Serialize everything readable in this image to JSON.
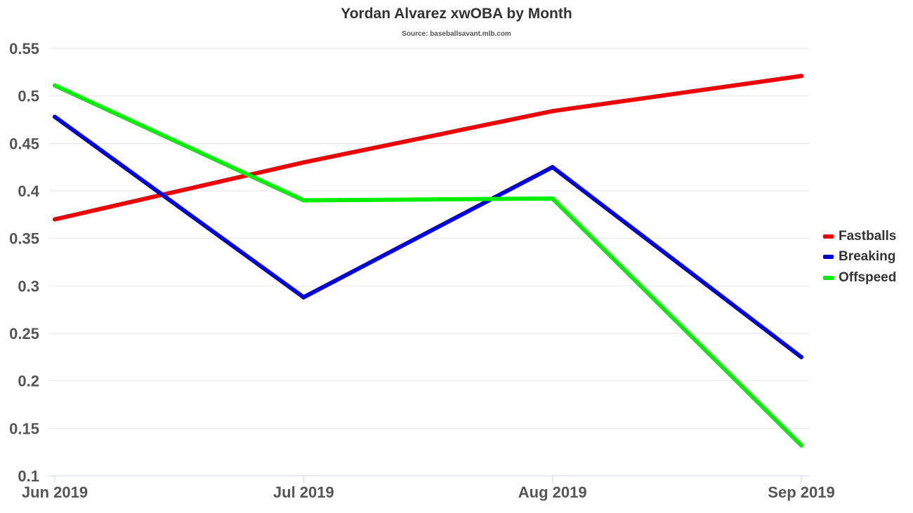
{
  "chart_data": {
    "type": "line",
    "title": "Yordan Alvarez xwOBA by Month",
    "subtitle": "Source: baseballsavant.mlb.com",
    "xlabel": "",
    "ylabel": "",
    "categories": [
      "Jun 2019",
      "Jul 2019",
      "Aug 2019",
      "Sep 2019"
    ],
    "ylim": [
      0.1,
      0.55
    ],
    "yticks": [
      0.1,
      0.15,
      0.2,
      0.25,
      0.3,
      0.35,
      0.4,
      0.45,
      0.5,
      0.55
    ],
    "ytick_labels": [
      "0.1",
      "0.15",
      "0.2",
      "0.25",
      "0.3",
      "0.35",
      "0.4",
      "0.45",
      "0.5",
      "0.55"
    ],
    "grid": true,
    "legend_position": "right",
    "series": [
      {
        "name": "Fastballs",
        "color": "#ee0000",
        "values": [
          0.37,
          0.43,
          0.484,
          0.521
        ]
      },
      {
        "name": "Breaking",
        "color": "#0000dd",
        "values": [
          0.478,
          0.288,
          0.425,
          0.225
        ]
      },
      {
        "name": "Offspeed",
        "color": "#00ee00",
        "values": [
          0.511,
          0.39,
          0.392,
          0.132
        ]
      }
    ]
  }
}
